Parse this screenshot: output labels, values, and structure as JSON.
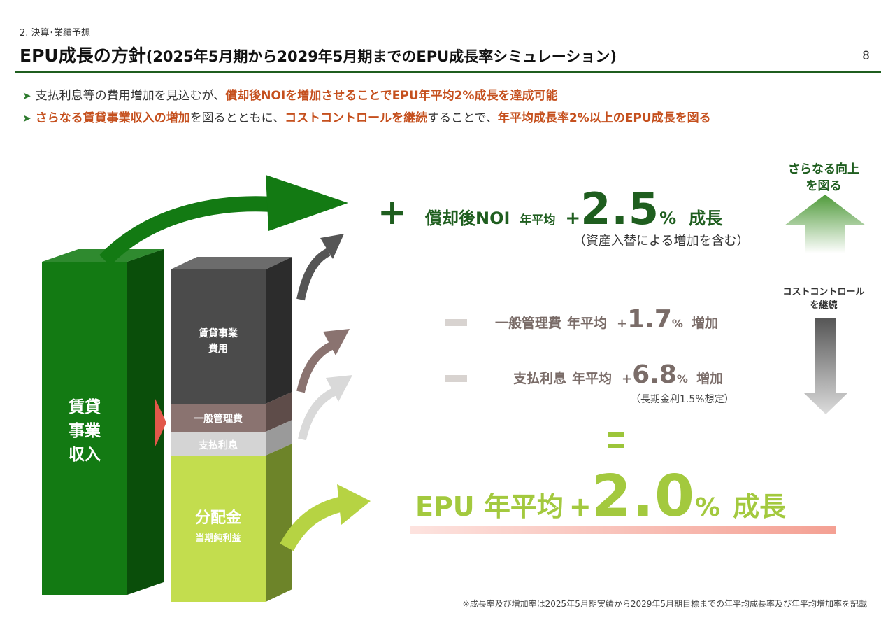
{
  "header": {
    "section": "2. 決算･業績予想",
    "title_main": "EPU成長の方針",
    "title_sub": "(2025年5月期から2029年5月期までのEPU成長率シミュレーション)",
    "page_number": "8"
  },
  "bullets": [
    {
      "a": "支払利息等の費用増加を見込むが、",
      "b": "償却後NOIを増加させることでEPU年平均2%成長を達成可能"
    },
    {
      "a": "さらなる賃貸事業収入の増加",
      "b": "を図るとともに、",
      "c": "コストコントロールを継続",
      "d": "することで、",
      "e": "年平均成長率2%以上のEPU成長を図る"
    }
  ],
  "bars": {
    "revenue_label": "賃貸\n事業\n収入",
    "revenue_lines": [
      "賃貸",
      "事業",
      "収入"
    ],
    "expense_label": "賃貸事業\n費用",
    "expense_lines": [
      "賃貸事業",
      "費用"
    ],
    "admin_label": "一般管理費",
    "interest_label": "支払利息",
    "dividend_label": "分配金",
    "dividend_sub": "当期純利益"
  },
  "noi": {
    "plus": "+",
    "label": "償却後NOI",
    "avg": "年平均",
    "sign": "+",
    "value": "2.5",
    "pct": "%",
    "growth": "成長",
    "note": "（資産入替による増加を含む）"
  },
  "admin_cost": {
    "label": "一般管理費",
    "avg": "年平均",
    "sign": "+",
    "value": "1.7",
    "pct": "%",
    "increase": "増加"
  },
  "interest_cost": {
    "label": "支払利息",
    "avg": "年平均",
    "sign": "+",
    "value": "6.8",
    "pct": "%",
    "increase": "増加",
    "note": "（長期金利1.5%想定）"
  },
  "epu": {
    "label": "EPU 年平均",
    "sign": "+",
    "value": "2.0",
    "pct": "%",
    "growth": "成長"
  },
  "further": {
    "line1": "さらなる向上",
    "line2": "を図る"
  },
  "cost_control": {
    "line1": "コストコントロール",
    "line2": "を継続"
  },
  "footnote": "※成長率及び増加率は2025年5月期実績から2029年5月期目標までの年平均成長率及び年平均増加率を記載",
  "colors": {
    "dark_green": "#1f5e1f",
    "accent_orange": "#c5501e",
    "epu_green": "#a3c93e",
    "cost_brown": "#7a6c68"
  }
}
